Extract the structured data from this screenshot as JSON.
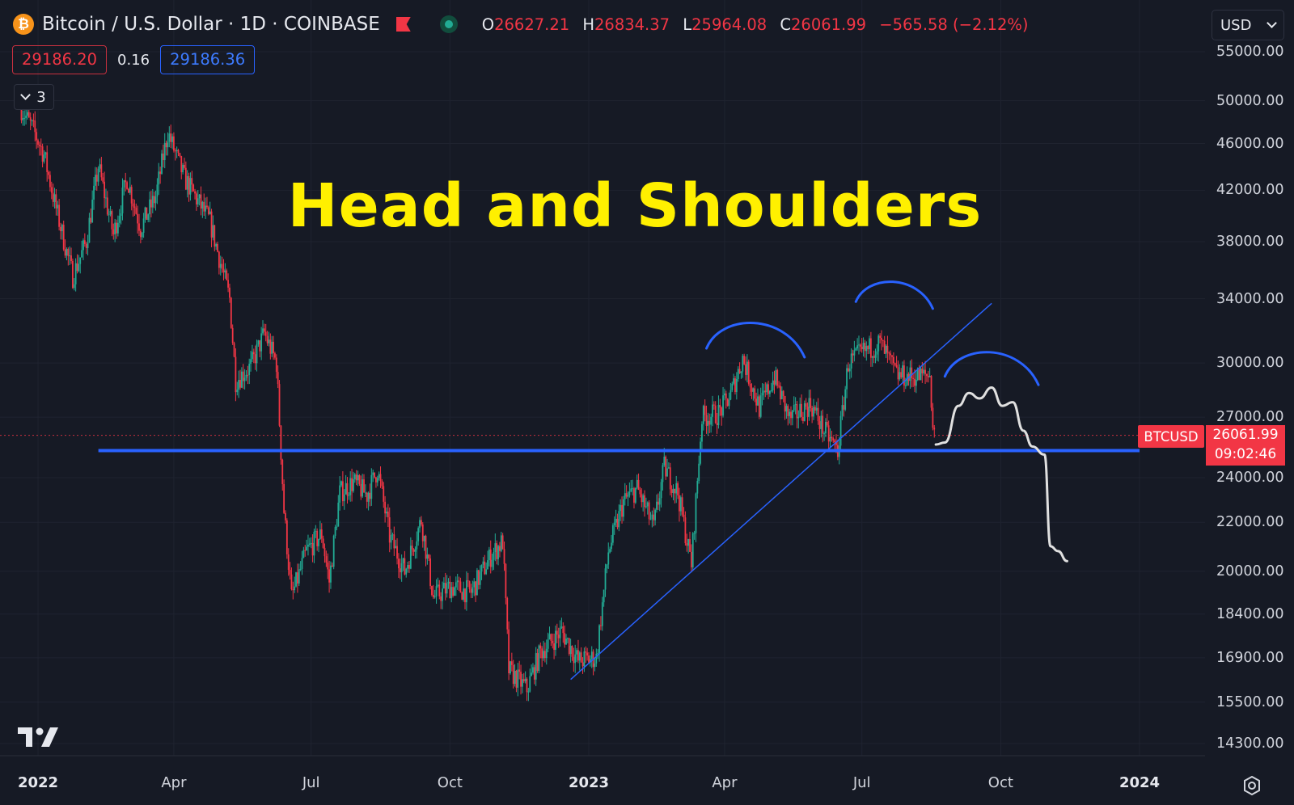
{
  "header": {
    "coin_symbol": "₿",
    "title": "Bitcoin / U.S. Dollar · 1D · COINBASE",
    "ohlc": [
      {
        "key": "O",
        "value": "26627.21"
      },
      {
        "key": "H",
        "value": "26834.37"
      },
      {
        "key": "L",
        "value": "25964.08"
      },
      {
        "key": "C",
        "value": "26061.99"
      }
    ],
    "change": "−565.58 (−2.12%)"
  },
  "bid_ask": {
    "bid": "29186.20",
    "spread": "0.16",
    "ask": "29186.36"
  },
  "indicators_collapse": {
    "count": "3"
  },
  "currency": {
    "selected": "USD"
  },
  "annotation_title": "Head and Shoulders",
  "price_label": {
    "symbol": "BTCUSD",
    "price": "26061.99",
    "countdown": "09:02:46"
  },
  "colors": {
    "background": "#161a25",
    "up": "#22ab94",
    "down": "#f23645",
    "drawing_blue": "#2962ff",
    "projection": "#e0e0e0",
    "title": "#fff000"
  },
  "icons": {
    "logo": "tradingview-logo-icon",
    "settings": "settings-gear-icon"
  },
  "chart_data": {
    "type": "candlestick",
    "symbol": "BTCUSD",
    "interval": "1D",
    "exchange": "COINBASE",
    "y_scale": "log",
    "ylim": [
      13500,
      56000
    ],
    "xlim": [
      "2022-01-01",
      "2024-02-15"
    ],
    "x_tick_labels": [
      {
        "label": "2022",
        "date": "2022-01-01",
        "bold": true
      },
      {
        "label": "Apr",
        "date": "2022-04-01",
        "bold": false
      },
      {
        "label": "Jul",
        "date": "2022-07-01",
        "bold": false
      },
      {
        "label": "Oct",
        "date": "2022-10-01",
        "bold": false
      },
      {
        "label": "2023",
        "date": "2023-01-01",
        "bold": true
      },
      {
        "label": "Apr",
        "date": "2023-04-01",
        "bold": false
      },
      {
        "label": "Jul",
        "date": "2023-07-01",
        "bold": false
      },
      {
        "label": "Oct",
        "date": "2023-10-01",
        "bold": false
      },
      {
        "label": "2024",
        "date": "2024-01-01",
        "bold": true
      }
    ],
    "y_tick_labels": [
      "55000.00",
      "50000.00",
      "46000.00",
      "42000.00",
      "38000.00",
      "34000.00",
      "30000.00",
      "27000.00",
      "24000.00",
      "22000.00",
      "20000.00",
      "18400.00",
      "16900.00",
      "15500.00",
      "14300.00"
    ],
    "price_path": [
      {
        "date": "2021-12-20",
        "price": 49500
      },
      {
        "date": "2021-12-29",
        "price": 47200
      },
      {
        "date": "2022-01-05",
        "price": 45000
      },
      {
        "date": "2022-01-12",
        "price": 41000
      },
      {
        "date": "2022-01-24",
        "price": 35500
      },
      {
        "date": "2022-02-02",
        "price": 38000
      },
      {
        "date": "2022-02-10",
        "price": 44000
      },
      {
        "date": "2022-02-20",
        "price": 38500
      },
      {
        "date": "2022-03-01",
        "price": 43000
      },
      {
        "date": "2022-03-10",
        "price": 39000
      },
      {
        "date": "2022-03-20",
        "price": 41500
      },
      {
        "date": "2022-03-28",
        "price": 47000
      },
      {
        "date": "2022-04-08",
        "price": 43000
      },
      {
        "date": "2022-04-25",
        "price": 39500
      },
      {
        "date": "2022-05-08",
        "price": 34000
      },
      {
        "date": "2022-05-12",
        "price": 29000
      },
      {
        "date": "2022-05-22",
        "price": 29800
      },
      {
        "date": "2022-05-31",
        "price": 31800
      },
      {
        "date": "2022-06-08",
        "price": 30000
      },
      {
        "date": "2022-06-13",
        "price": 22500
      },
      {
        "date": "2022-06-18",
        "price": 19000
      },
      {
        "date": "2022-06-28",
        "price": 20800
      },
      {
        "date": "2022-07-08",
        "price": 21500
      },
      {
        "date": "2022-07-13",
        "price": 19600
      },
      {
        "date": "2022-07-20",
        "price": 23300
      },
      {
        "date": "2022-07-29",
        "price": 23800
      },
      {
        "date": "2022-08-07",
        "price": 23200
      },
      {
        "date": "2022-08-14",
        "price": 24400
      },
      {
        "date": "2022-08-22",
        "price": 21400
      },
      {
        "date": "2022-09-01",
        "price": 20000
      },
      {
        "date": "2022-09-12",
        "price": 22100
      },
      {
        "date": "2022-09-20",
        "price": 19000
      },
      {
        "date": "2022-10-01",
        "price": 19400
      },
      {
        "date": "2022-10-15",
        "price": 19200
      },
      {
        "date": "2022-10-28",
        "price": 20600
      },
      {
        "date": "2022-11-05",
        "price": 21200
      },
      {
        "date": "2022-11-09",
        "price": 16500
      },
      {
        "date": "2022-11-21",
        "price": 15900
      },
      {
        "date": "2022-11-30",
        "price": 17100
      },
      {
        "date": "2022-12-14",
        "price": 17800
      },
      {
        "date": "2022-12-25",
        "price": 16800
      },
      {
        "date": "2023-01-06",
        "price": 16900
      },
      {
        "date": "2023-01-14",
        "price": 20800
      },
      {
        "date": "2023-01-24",
        "price": 22900
      },
      {
        "date": "2023-02-02",
        "price": 23500
      },
      {
        "date": "2023-02-13",
        "price": 21800
      },
      {
        "date": "2023-02-20",
        "price": 24500
      },
      {
        "date": "2023-03-01",
        "price": 23300
      },
      {
        "date": "2023-03-10",
        "price": 20300
      },
      {
        "date": "2023-03-17",
        "price": 27000
      },
      {
        "date": "2023-03-28",
        "price": 27200
      },
      {
        "date": "2023-04-05",
        "price": 28200
      },
      {
        "date": "2023-04-13",
        "price": 30300
      },
      {
        "date": "2023-04-24",
        "price": 27500
      },
      {
        "date": "2023-05-04",
        "price": 29200
      },
      {
        "date": "2023-05-14",
        "price": 26900
      },
      {
        "date": "2023-05-28",
        "price": 27700
      },
      {
        "date": "2023-06-06",
        "price": 26300
      },
      {
        "date": "2023-06-15",
        "price": 25300
      },
      {
        "date": "2023-06-22",
        "price": 30000
      },
      {
        "date": "2023-07-01",
        "price": 30600
      },
      {
        "date": "2023-07-13",
        "price": 31200
      },
      {
        "date": "2023-07-24",
        "price": 29300
      },
      {
        "date": "2023-08-01",
        "price": 29200
      },
      {
        "date": "2023-08-15",
        "price": 29300
      },
      {
        "date": "2023-08-17",
        "price": 26600
      },
      {
        "date": "2023-08-18",
        "price": 26062
      }
    ],
    "drawings": {
      "support_line": {
        "price": 25300,
        "from": "2022-02-10",
        "to": "2024-01-01"
      },
      "trend_line": {
        "from": {
          "date": "2022-12-20",
          "price": 16200
        },
        "to": {
          "date": "2023-09-25",
          "price": 33700
        }
      },
      "left_shoulder_arc": {
        "from": "2023-03-20",
        "to": "2023-05-24",
        "peak_price": 32500
      },
      "head_arc": {
        "from": "2023-06-27",
        "to": "2023-08-17",
        "peak_price": 35200
      },
      "right_shoulder_arc": {
        "from": "2023-08-25",
        "to": "2023-10-26",
        "peak_price": 30700
      },
      "projection_path": [
        {
          "date": "2023-08-19",
          "price": 25600
        },
        {
          "date": "2023-08-25",
          "price": 25700
        },
        {
          "date": "2023-09-03",
          "price": 27600
        },
        {
          "date": "2023-09-10",
          "price": 28300
        },
        {
          "date": "2023-09-17",
          "price": 28000
        },
        {
          "date": "2023-09-25",
          "price": 28600
        },
        {
          "date": "2023-10-02",
          "price": 27600
        },
        {
          "date": "2023-10-09",
          "price": 27800
        },
        {
          "date": "2023-10-16",
          "price": 26300
        },
        {
          "date": "2023-10-22",
          "price": 25500
        },
        {
          "date": "2023-10-30",
          "price": 25100
        },
        {
          "date": "2023-11-03",
          "price": 21000
        },
        {
          "date": "2023-11-08",
          "price": 20800
        },
        {
          "date": "2023-11-14",
          "price": 20400
        }
      ]
    },
    "last_price": 26061.99
  }
}
